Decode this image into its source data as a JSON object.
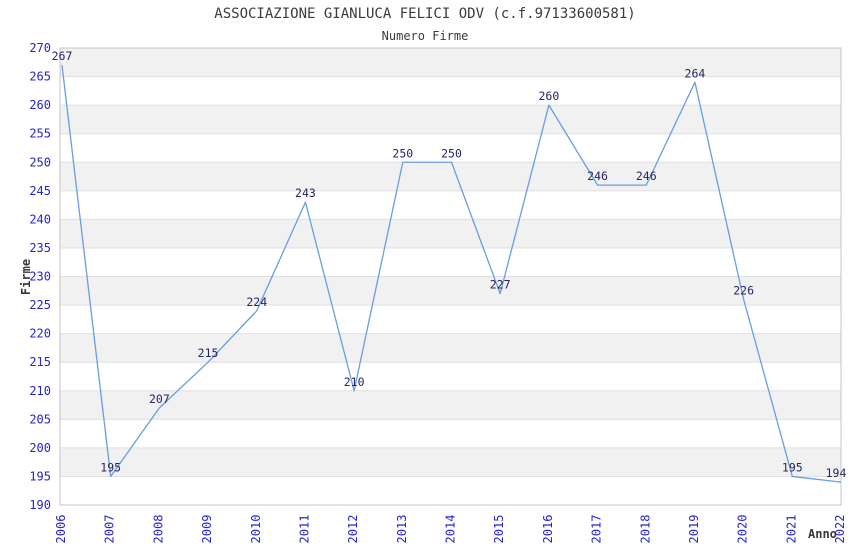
{
  "header": {
    "title": "ASSOCIAZIONE GIANLUCA FELICI ODV (c.f.97133600581)",
    "subtitle": "Numero Firme"
  },
  "chart_data": {
    "type": "line",
    "title": "ASSOCIAZIONE GIANLUCA FELICI ODV (c.f.97133600581)",
    "subtitle": "Numero Firme",
    "xlabel": "Anno",
    "ylabel": "Firme",
    "categories": [
      "2006",
      "2007",
      "2008",
      "2009",
      "2010",
      "2011",
      "2012",
      "2013",
      "2014",
      "2015",
      "2016",
      "2017",
      "2018",
      "2019",
      "2020",
      "2021",
      "2022"
    ],
    "series": [
      {
        "name": "Numero Firme",
        "values": [
          267,
          195,
          207,
          215,
          224,
          243,
          210,
          250,
          250,
          227,
          260,
          246,
          246,
          264,
          226,
          195,
          194
        ]
      }
    ],
    "ylim": [
      190,
      270
    ],
    "ytick_step": 5,
    "yticks": [
      190,
      195,
      200,
      205,
      210,
      215,
      220,
      225,
      230,
      235,
      240,
      245,
      250,
      255,
      260,
      265,
      270
    ],
    "grid": "horizontal-bands-alternating",
    "legend": "none",
    "data_labels": "shown-above-points",
    "colors": {
      "line": "#689de2",
      "axis_tick_text": "#2525cc",
      "data_label_text": "#252569",
      "band_fill": "#f1f1f1",
      "gridline": "#e0e0e0",
      "plot_border": "#c4c4c4",
      "title_text": "#3b3b3b",
      "axis_title_text": "#383838",
      "background": "#ffffff"
    }
  }
}
